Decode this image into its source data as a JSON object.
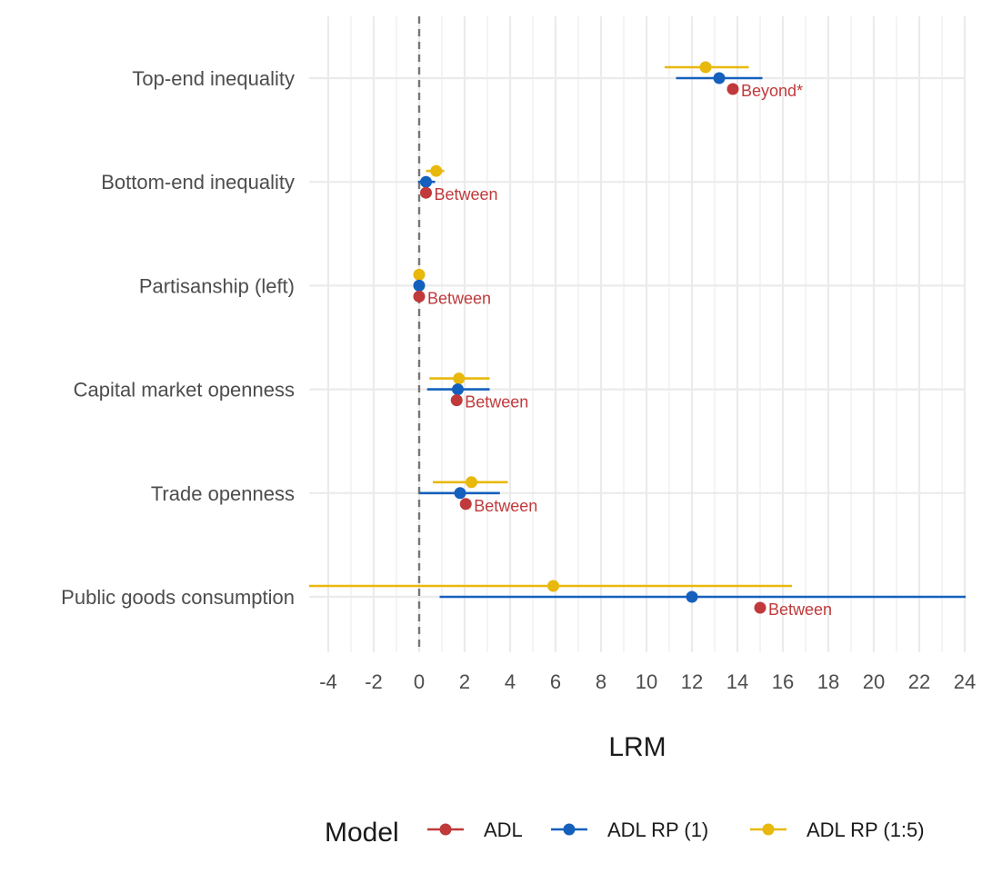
{
  "chart_data": {
    "type": "scatter",
    "subtype": "coefficient-plot-with-intervals",
    "xlabel": "LRM",
    "xlim": [
      -5,
      24.2
    ],
    "xticks": [
      -4,
      -2,
      0,
      2,
      4,
      6,
      8,
      10,
      12,
      14,
      16,
      18,
      20,
      22,
      24
    ],
    "reference_line": {
      "x": 0,
      "style": "dashed"
    },
    "grid": true,
    "categories": [
      "Top-end inequality",
      "Bottom-end inequality",
      "Partisanship (left)",
      "Capital market openness",
      "Trade openness",
      "Public goods consumption"
    ],
    "series": [
      {
        "name": "ADL",
        "color": "#C0393B",
        "points": [
          {
            "category": "Top-end inequality",
            "value": 13.8,
            "annotation": "Beyond*"
          },
          {
            "category": "Bottom-end inequality",
            "value": 0.3,
            "annotation": "Between"
          },
          {
            "category": "Partisanship (left)",
            "value": 0.0,
            "annotation": "Between"
          },
          {
            "category": "Capital market openness",
            "value": 1.65,
            "annotation": "Between"
          },
          {
            "category": "Trade openness",
            "value": 2.05,
            "annotation": "Between"
          },
          {
            "category": "Public goods consumption",
            "value": 15.0,
            "annotation": "Between"
          }
        ]
      },
      {
        "name": "ADL RP (1)",
        "color": "#1560BD",
        "points": [
          {
            "category": "Top-end inequality",
            "value": 13.2,
            "low": 11.3,
            "high": 15.1
          },
          {
            "category": "Bottom-end inequality",
            "value": 0.3,
            "low": -0.05,
            "high": 0.7
          },
          {
            "category": "Partisanship (left)",
            "value": 0.0
          },
          {
            "category": "Capital market openness",
            "value": 1.7,
            "low": 0.35,
            "high": 3.1
          },
          {
            "category": "Trade openness",
            "value": 1.8,
            "low": 0.0,
            "high": 3.55
          },
          {
            "category": "Public goods consumption",
            "value": 12.0,
            "low": 0.9,
            "high": 24.2
          }
        ]
      },
      {
        "name": "ADL RP (1:5)",
        "color": "#E8B80C",
        "points": [
          {
            "category": "Top-end inequality",
            "value": 12.6,
            "low": 10.8,
            "high": 14.5
          },
          {
            "category": "Bottom-end inequality",
            "value": 0.75,
            "low": 0.3,
            "high": 1.1
          },
          {
            "category": "Partisanship (left)",
            "value": 0.0
          },
          {
            "category": "Capital market openness",
            "value": 1.75,
            "low": 0.45,
            "high": 3.1
          },
          {
            "category": "Trade openness",
            "value": 2.3,
            "low": 0.6,
            "high": 3.9
          },
          {
            "category": "Public goods consumption",
            "value": 5.9,
            "low": -5.0,
            "high": 16.4
          }
        ]
      }
    ],
    "legend": {
      "title": "Model",
      "position": "bottom",
      "entries": [
        "ADL",
        "ADL RP (1)",
        "ADL RP (1:5)"
      ]
    }
  }
}
